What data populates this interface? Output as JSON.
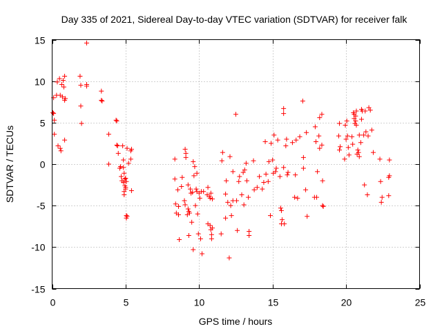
{
  "chart_data": {
    "type": "scatter",
    "title": "Day 335 of 2021, Sidereal Day-to-day VTEC variation (SDTVAR) for receiver falk",
    "xlabel": "GPS time / hours",
    "ylabel": "SDTVAR / TECUs",
    "xlim": [
      0,
      25
    ],
    "ylim": [
      -15,
      15
    ],
    "xticks": [
      0,
      5,
      10,
      15,
      20,
      25
    ],
    "yticks": [
      -15,
      -10,
      -5,
      0,
      5,
      10,
      15
    ],
    "grid": true,
    "marker": "+",
    "color": "#ff0000",
    "series": [
      {
        "name": "SDTVAR",
        "points": [
          [
            0.05,
            6.2
          ],
          [
            0.1,
            8.0
          ],
          [
            0.1,
            6.1
          ],
          [
            0.15,
            5.3
          ],
          [
            0.15,
            3.6
          ],
          [
            0.3,
            8.3
          ],
          [
            0.35,
            9.9
          ],
          [
            0.4,
            2.2
          ],
          [
            0.5,
            10.3
          ],
          [
            0.55,
            8.3
          ],
          [
            0.55,
            1.9
          ],
          [
            0.6,
            1.6
          ],
          [
            0.65,
            9.6
          ],
          [
            0.7,
            8.1
          ],
          [
            0.75,
            10.1
          ],
          [
            0.8,
            9.3
          ],
          [
            0.85,
            10.6
          ],
          [
            0.85,
            7.7
          ],
          [
            0.85,
            2.9
          ],
          [
            0.9,
            7.9
          ],
          [
            1.9,
            10.6
          ],
          [
            1.95,
            9.5
          ],
          [
            1.95,
            7.0
          ],
          [
            2.0,
            4.9
          ],
          [
            2.35,
            14.6
          ],
          [
            2.35,
            9.6
          ],
          [
            2.35,
            9.4
          ],
          [
            3.35,
            8.8
          ],
          [
            3.35,
            7.7
          ],
          [
            3.4,
            7.6
          ],
          [
            3.85,
            3.6
          ],
          [
            3.85,
            0.0
          ],
          [
            4.35,
            5.3
          ],
          [
            4.4,
            5.2
          ],
          [
            4.4,
            2.3
          ],
          [
            4.45,
            2.2
          ],
          [
            4.5,
            1.3
          ],
          [
            4.6,
            -0.5
          ],
          [
            4.65,
            -0.3
          ],
          [
            4.7,
            -1.5
          ],
          [
            4.75,
            -2.0
          ],
          [
            4.8,
            2.2
          ],
          [
            4.85,
            0.5
          ],
          [
            4.85,
            -0.4
          ],
          [
            4.85,
            -2.2
          ],
          [
            4.9,
            -1.1
          ],
          [
            4.9,
            -3.3
          ],
          [
            4.9,
            -3.7
          ],
          [
            4.95,
            -1.8
          ],
          [
            4.95,
            -2.6
          ],
          [
            5.0,
            -1.7
          ],
          [
            5.0,
            -2.8
          ],
          [
            5.0,
            -3.0
          ],
          [
            5.05,
            -2.1
          ],
          [
            5.05,
            -6.2
          ],
          [
            5.05,
            -6.5
          ],
          [
            5.1,
            -6.3
          ],
          [
            5.1,
            1.9
          ],
          [
            5.2,
            0.1
          ],
          [
            5.35,
            1.6
          ],
          [
            5.35,
            0.6
          ],
          [
            5.4,
            1.8
          ],
          [
            5.4,
            -3.2
          ],
          [
            8.35,
            0.6
          ],
          [
            8.35,
            -1.8
          ],
          [
            8.4,
            -4.8
          ],
          [
            8.45,
            -5.9
          ],
          [
            8.55,
            -3.1
          ],
          [
            8.6,
            -5.1
          ],
          [
            8.6,
            -6.1
          ],
          [
            8.65,
            -9.1
          ],
          [
            8.8,
            -2.7
          ],
          [
            8.85,
            -1.6
          ],
          [
            9.0,
            -4.4
          ],
          [
            9.05,
            -4.9
          ],
          [
            9.05,
            1.8
          ],
          [
            9.1,
            1.3
          ],
          [
            9.1,
            0.8
          ],
          [
            9.2,
            -6.1
          ],
          [
            9.25,
            -2.5
          ],
          [
            9.25,
            -5.4
          ],
          [
            9.3,
            -5.7
          ],
          [
            9.3,
            -8.6
          ],
          [
            9.35,
            -5.9
          ],
          [
            9.4,
            -3.0
          ],
          [
            9.45,
            -3.5
          ],
          [
            9.5,
            -7.0
          ],
          [
            9.55,
            -3.4
          ],
          [
            9.6,
            0.3
          ],
          [
            9.65,
            -1.4
          ],
          [
            9.6,
            -10.3
          ],
          [
            9.7,
            -0.3
          ],
          [
            9.75,
            -5.0
          ],
          [
            9.8,
            -3.0
          ],
          [
            9.85,
            -3.3
          ],
          [
            9.85,
            -1.1
          ],
          [
            9.9,
            -6.0
          ],
          [
            9.95,
            -8.4
          ],
          [
            10.0,
            -3.5
          ],
          [
            10.05,
            -4.1
          ],
          [
            10.1,
            -9.0
          ],
          [
            10.15,
            -3.3
          ],
          [
            10.2,
            -10.8
          ],
          [
            10.3,
            -3.3
          ],
          [
            10.55,
            -3.7
          ],
          [
            10.6,
            -7.2
          ],
          [
            10.6,
            -2.8
          ],
          [
            10.7,
            -3.9
          ],
          [
            10.75,
            -4.1
          ],
          [
            10.75,
            -7.4
          ],
          [
            10.8,
            -3.5
          ],
          [
            10.8,
            -7.9
          ],
          [
            10.85,
            -8.5
          ],
          [
            10.85,
            -9.0
          ],
          [
            10.9,
            -7.7
          ],
          [
            10.9,
            -4.2
          ],
          [
            11.5,
            -8.4
          ],
          [
            11.55,
            0.4
          ],
          [
            11.6,
            1.4
          ],
          [
            11.8,
            -6.5
          ],
          [
            11.8,
            -3.6
          ],
          [
            11.85,
            -2.0
          ],
          [
            11.95,
            -4.6
          ],
          [
            12.05,
            -11.3
          ],
          [
            12.1,
            0.9
          ],
          [
            12.15,
            -5.0
          ],
          [
            12.2,
            -6.2
          ],
          [
            12.3,
            -0.9
          ],
          [
            12.3,
            -4.4
          ],
          [
            12.5,
            6.0
          ],
          [
            12.55,
            -4.4
          ],
          [
            12.6,
            -8.0
          ],
          [
            12.7,
            -2.1
          ],
          [
            12.75,
            -1.5
          ],
          [
            12.9,
            -3.7
          ],
          [
            13.0,
            -1.0
          ],
          [
            13.05,
            -4.9
          ],
          [
            13.1,
            -0.7
          ],
          [
            13.2,
            0.1
          ],
          [
            13.25,
            -2.0
          ],
          [
            13.35,
            -4.0
          ],
          [
            13.4,
            -8.1
          ],
          [
            13.4,
            -8.6
          ],
          [
            13.7,
            0.4
          ],
          [
            13.75,
            -3.1
          ],
          [
            13.95,
            -2.8
          ],
          [
            14.1,
            -1.5
          ],
          [
            14.3,
            -3.0
          ],
          [
            14.4,
            -2.2
          ],
          [
            14.5,
            2.7
          ],
          [
            14.55,
            -1.2
          ],
          [
            14.7,
            -2.1
          ],
          [
            14.75,
            0.3
          ],
          [
            14.85,
            -6.2
          ],
          [
            14.9,
            2.5
          ],
          [
            15.0,
            0.5
          ],
          [
            15.05,
            -1.1
          ],
          [
            15.1,
            3.5
          ],
          [
            15.2,
            -0.9
          ],
          [
            15.25,
            -0.5
          ],
          [
            15.35,
            2.9
          ],
          [
            15.5,
            -1.5
          ],
          [
            15.55,
            -5.3
          ],
          [
            15.6,
            -5.6
          ],
          [
            15.6,
            -7.2
          ],
          [
            15.65,
            -6.7
          ],
          [
            15.75,
            6.7
          ],
          [
            15.75,
            6.1
          ],
          [
            15.75,
            -0.4
          ],
          [
            15.8,
            -7.2
          ],
          [
            15.9,
            2.2
          ],
          [
            15.95,
            3.0
          ],
          [
            16.0,
            -1.3
          ],
          [
            16.05,
            -1.0
          ],
          [
            16.35,
            2.6
          ],
          [
            16.5,
            -4.0
          ],
          [
            16.55,
            -1.3
          ],
          [
            16.6,
            2.9
          ],
          [
            16.7,
            -4.1
          ],
          [
            16.85,
            3.3
          ],
          [
            17.05,
            7.6
          ],
          [
            17.1,
            -0.5
          ],
          [
            17.1,
            0.8
          ],
          [
            17.25,
            -3.1
          ],
          [
            17.3,
            3.8
          ],
          [
            17.35,
            -6.3
          ],
          [
            17.85,
            -4.0
          ],
          [
            17.9,
            4.5
          ],
          [
            17.95,
            2.7
          ],
          [
            18.0,
            -4.0
          ],
          [
            18.05,
            -0.9
          ],
          [
            18.15,
            3.4
          ],
          [
            18.2,
            1.9
          ],
          [
            18.2,
            5.6
          ],
          [
            18.35,
            2.3
          ],
          [
            18.35,
            6.0
          ],
          [
            18.4,
            -2.0
          ],
          [
            18.4,
            -5.0
          ],
          [
            18.45,
            -5.1
          ],
          [
            19.5,
            3.4
          ],
          [
            19.55,
            4.9
          ],
          [
            19.55,
            1.7
          ],
          [
            19.6,
            2.1
          ],
          [
            19.9,
            0.6
          ],
          [
            19.95,
            4.7
          ],
          [
            20.0,
            3.0
          ],
          [
            20.05,
            5.2
          ],
          [
            20.1,
            3.4
          ],
          [
            20.15,
            2.0
          ],
          [
            20.2,
            1.1
          ],
          [
            20.4,
            3.3
          ],
          [
            20.45,
            2.4
          ],
          [
            20.5,
            6.2
          ],
          [
            20.55,
            6.0
          ],
          [
            20.55,
            5.5
          ],
          [
            20.6,
            4.9
          ],
          [
            20.65,
            5.8
          ],
          [
            20.65,
            5.2
          ],
          [
            20.7,
            6.4
          ],
          [
            20.7,
            4.7
          ],
          [
            20.75,
            1.2
          ],
          [
            20.8,
            1.7
          ],
          [
            20.85,
            1.4
          ],
          [
            20.9,
            0.9
          ],
          [
            20.9,
            3.5
          ],
          [
            21.0,
            2.6
          ],
          [
            21.05,
            5.4
          ],
          [
            21.05,
            6.6
          ],
          [
            21.1,
            6.4
          ],
          [
            21.2,
            3.5
          ],
          [
            21.25,
            -2.5
          ],
          [
            21.3,
            6.4
          ],
          [
            21.35,
            3.9
          ],
          [
            21.45,
            -3.7
          ],
          [
            21.5,
            3.4
          ],
          [
            21.55,
            6.8
          ],
          [
            21.65,
            6.5
          ],
          [
            21.75,
            4.1
          ],
          [
            21.85,
            1.4
          ],
          [
            22.3,
            0.6
          ],
          [
            22.35,
            -2.1
          ],
          [
            22.4,
            -4.6
          ],
          [
            22.45,
            -4.0
          ],
          [
            22.9,
            -3.8
          ],
          [
            22.95,
            0.5
          ],
          [
            22.95,
            -1.4
          ],
          [
            22.9,
            -1.6
          ]
        ]
      }
    ]
  }
}
